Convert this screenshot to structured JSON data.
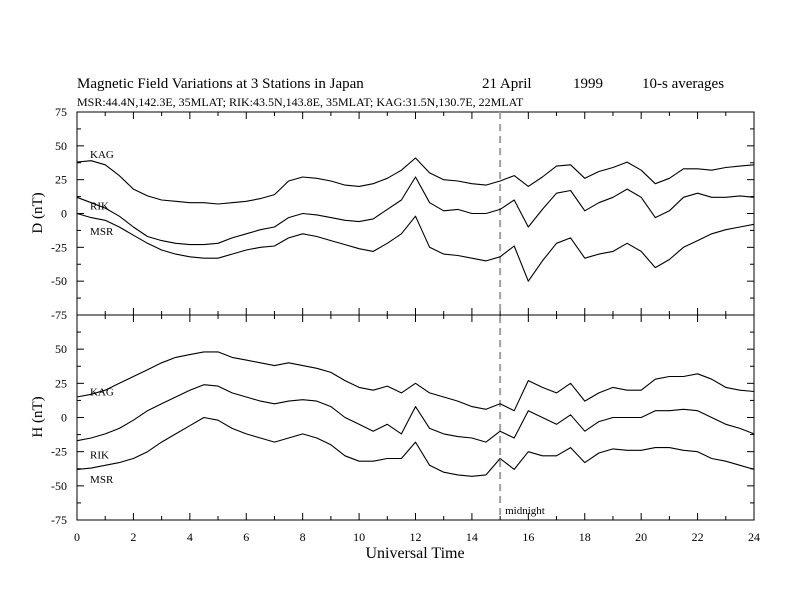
{
  "header": {
    "title": "Magnetic Field Variations at 3 Stations in Japan",
    "date": "21  April",
    "year": "1999",
    "averaging": "10-s averages",
    "stations_line": "MSR:44.4N,142.3E, 35MLAT;   RIK:43.5N,143.8E, 35MLAT;   KAG:31.5N,130.7E, 22MLAT"
  },
  "colors": {
    "line": "#000000",
    "marker": "#a0a0a0",
    "background": "#ffffff"
  },
  "chart_data": [
    {
      "type": "line",
      "panel": "top",
      "ylabel": "D  (nT)",
      "ylim": [
        -75,
        75
      ],
      "yticks": [
        "75",
        "50",
        "25",
        "0",
        "-25",
        "-50",
        "-75"
      ],
      "ytick_values": [
        75,
        50,
        25,
        0,
        -25,
        -50,
        -75
      ],
      "xlim": [
        0,
        24
      ],
      "grid": false,
      "series": [
        {
          "name": "KAG",
          "x": [
            0,
            0.5,
            1,
            1.5,
            2,
            2.5,
            3,
            3.5,
            4,
            4.5,
            5,
            5.5,
            6,
            6.5,
            7,
            7.5,
            8,
            8.5,
            9,
            9.5,
            10,
            10.5,
            11,
            11.5,
            12,
            12.5,
            13,
            13.5,
            14,
            14.5,
            15,
            15.5,
            16,
            16.5,
            17,
            17.5,
            18,
            18.5,
            19,
            19.5,
            20,
            20.5,
            21,
            21.5,
            22,
            22.5,
            23,
            23.5,
            24
          ],
          "y": [
            38,
            39,
            36,
            28,
            18,
            13,
            10,
            9,
            8,
            8,
            7,
            8,
            9,
            11,
            14,
            24,
            27,
            26,
            24,
            21,
            20,
            22,
            26,
            32,
            41,
            30,
            25,
            24,
            22,
            21,
            24,
            28,
            20,
            27,
            35,
            36,
            26,
            31,
            34,
            38,
            32,
            22,
            26,
            33,
            33,
            32,
            34,
            35,
            36
          ]
        },
        {
          "name": "RIK",
          "x": [
            0,
            0.5,
            1,
            1.5,
            2,
            2.5,
            3,
            3.5,
            4,
            4.5,
            5,
            5.5,
            6,
            6.5,
            7,
            7.5,
            8,
            8.5,
            9,
            9.5,
            10,
            10.5,
            11,
            11.5,
            12,
            12.5,
            13,
            13.5,
            14,
            14.5,
            15,
            15.5,
            16,
            16.5,
            17,
            17.5,
            18,
            18.5,
            19,
            19.5,
            20,
            20.5,
            21,
            21.5,
            22,
            22.5,
            23,
            23.5,
            24
          ],
          "y": [
            12,
            8,
            4,
            -2,
            -10,
            -17,
            -20,
            -22,
            -23,
            -23,
            -22,
            -18,
            -15,
            -12,
            -10,
            -3,
            0,
            -1,
            -3,
            -5,
            -6,
            -4,
            3,
            10,
            27,
            8,
            2,
            3,
            0,
            0,
            3,
            10,
            -10,
            3,
            15,
            17,
            2,
            8,
            12,
            18,
            12,
            -3,
            2,
            12,
            15,
            12,
            12,
            13,
            12
          ]
        },
        {
          "name": "MSR",
          "x": [
            0,
            0.5,
            1,
            1.5,
            2,
            2.5,
            3,
            3.5,
            4,
            4.5,
            5,
            5.5,
            6,
            6.5,
            7,
            7.5,
            8,
            8.5,
            9,
            9.5,
            10,
            10.5,
            11,
            11.5,
            12,
            12.5,
            13,
            13.5,
            14,
            14.5,
            15,
            15.5,
            16,
            16.5,
            17,
            17.5,
            18,
            18.5,
            19,
            19.5,
            20,
            20.5,
            21,
            21.5,
            22,
            22.5,
            23,
            23.5,
            24
          ],
          "y": [
            0,
            -3,
            -5,
            -10,
            -16,
            -22,
            -27,
            -30,
            -32,
            -33,
            -33,
            -30,
            -27,
            -25,
            -24,
            -18,
            -15,
            -17,
            -20,
            -23,
            -26,
            -28,
            -22,
            -15,
            -2,
            -25,
            -30,
            -31,
            -33,
            -35,
            -32,
            -24,
            -50,
            -35,
            -22,
            -18,
            -33,
            -30,
            -28,
            -22,
            -28,
            -40,
            -34,
            -25,
            -20,
            -15,
            -12,
            -10,
            -8
          ]
        }
      ],
      "series_labels": [
        {
          "text": "KAG",
          "x": 0.25,
          "y": 44
        },
        {
          "text": "RIK",
          "x": 0.25,
          "y": 6
        },
        {
          "text": "MSR",
          "x": 0.25,
          "y": -13
        }
      ]
    },
    {
      "type": "line",
      "panel": "bottom",
      "ylabel": "H  (nT)",
      "ylim": [
        -75,
        75
      ],
      "yticks": [
        "50",
        "25",
        "0",
        "-25",
        "-50",
        "-75"
      ],
      "ytick_values": [
        50,
        25,
        0,
        -25,
        -50,
        -75
      ],
      "xlim": [
        0,
        24
      ],
      "xlabel": "Universal Time",
      "xticks": [
        "0",
        "2",
        "4",
        "6",
        "8",
        "10",
        "12",
        "14",
        "16",
        "18",
        "20",
        "22",
        "24"
      ],
      "xtick_values": [
        0,
        2,
        4,
        6,
        8,
        10,
        12,
        14,
        16,
        18,
        20,
        22,
        24
      ],
      "grid": false,
      "series": [
        {
          "name": "KAG",
          "x": [
            0,
            0.5,
            1,
            1.5,
            2,
            2.5,
            3,
            3.5,
            4,
            4.5,
            5,
            5.5,
            6,
            6.5,
            7,
            7.5,
            8,
            8.5,
            9,
            9.5,
            10,
            10.5,
            11,
            11.5,
            12,
            12.5,
            13,
            13.5,
            14,
            14.5,
            15,
            15.5,
            16,
            16.5,
            17,
            17.5,
            18,
            18.5,
            19,
            19.5,
            20,
            20.5,
            21,
            21.5,
            22,
            22.5,
            23,
            23.5,
            24
          ],
          "y": [
            15,
            17,
            20,
            25,
            30,
            35,
            40,
            44,
            46,
            48,
            48,
            44,
            42,
            40,
            38,
            40,
            38,
            36,
            33,
            27,
            22,
            20,
            23,
            18,
            25,
            18,
            15,
            12,
            8,
            6,
            10,
            5,
            27,
            22,
            18,
            25,
            12,
            18,
            22,
            20,
            20,
            28,
            30,
            30,
            32,
            28,
            22,
            20,
            19
          ]
        },
        {
          "name": "RIK",
          "x": [
            0,
            0.5,
            1,
            1.5,
            2,
            2.5,
            3,
            3.5,
            4,
            4.5,
            5,
            5.5,
            6,
            6.5,
            7,
            7.5,
            8,
            8.5,
            9,
            9.5,
            10,
            10.5,
            11,
            11.5,
            12,
            12.5,
            13,
            13.5,
            14,
            14.5,
            15,
            15.5,
            16,
            16.5,
            17,
            17.5,
            18,
            18.5,
            19,
            19.5,
            20,
            20.5,
            21,
            21.5,
            22,
            22.5,
            23,
            23.5,
            24
          ],
          "y": [
            -17,
            -15,
            -12,
            -8,
            -2,
            5,
            10,
            15,
            20,
            24,
            23,
            18,
            15,
            12,
            10,
            12,
            13,
            12,
            8,
            0,
            -5,
            -10,
            -5,
            -12,
            8,
            -8,
            -12,
            -14,
            -15,
            -18,
            -10,
            -15,
            5,
            0,
            -5,
            2,
            -10,
            -3,
            0,
            0,
            0,
            5,
            5,
            6,
            5,
            0,
            -5,
            -8,
            -12
          ]
        },
        {
          "name": "MSR",
          "x": [
            0,
            0.5,
            1,
            1.5,
            2,
            2.5,
            3,
            3.5,
            4,
            4.5,
            5,
            5.5,
            6,
            6.5,
            7,
            7.5,
            8,
            8.5,
            9,
            9.5,
            10,
            10.5,
            11,
            11.5,
            12,
            12.5,
            13,
            13.5,
            14,
            14.5,
            15,
            15.5,
            16,
            16.5,
            17,
            17.5,
            18,
            18.5,
            19,
            19.5,
            20,
            20.5,
            21,
            21.5,
            22,
            22.5,
            23,
            23.5,
            24
          ],
          "y": [
            -38,
            -37,
            -35,
            -33,
            -30,
            -25,
            -18,
            -12,
            -6,
            0,
            -2,
            -8,
            -12,
            -15,
            -18,
            -15,
            -12,
            -15,
            -20,
            -28,
            -32,
            -32,
            -30,
            -30,
            -18,
            -35,
            -40,
            -42,
            -43,
            -42,
            -30,
            -38,
            -25,
            -28,
            -28,
            -22,
            -33,
            -26,
            -23,
            -24,
            -24,
            -22,
            -22,
            -24,
            -25,
            -30,
            -32,
            -35,
            -38
          ]
        }
      ],
      "series_labels": [
        {
          "text": "KAG",
          "x": 0.25,
          "y": 19
        },
        {
          "text": "RIK",
          "x": 0.25,
          "y": -27
        },
        {
          "text": "MSR",
          "x": 0.25,
          "y": -45
        }
      ]
    }
  ],
  "marker": {
    "x": 15,
    "label": "midnight",
    "style": "dashed"
  }
}
